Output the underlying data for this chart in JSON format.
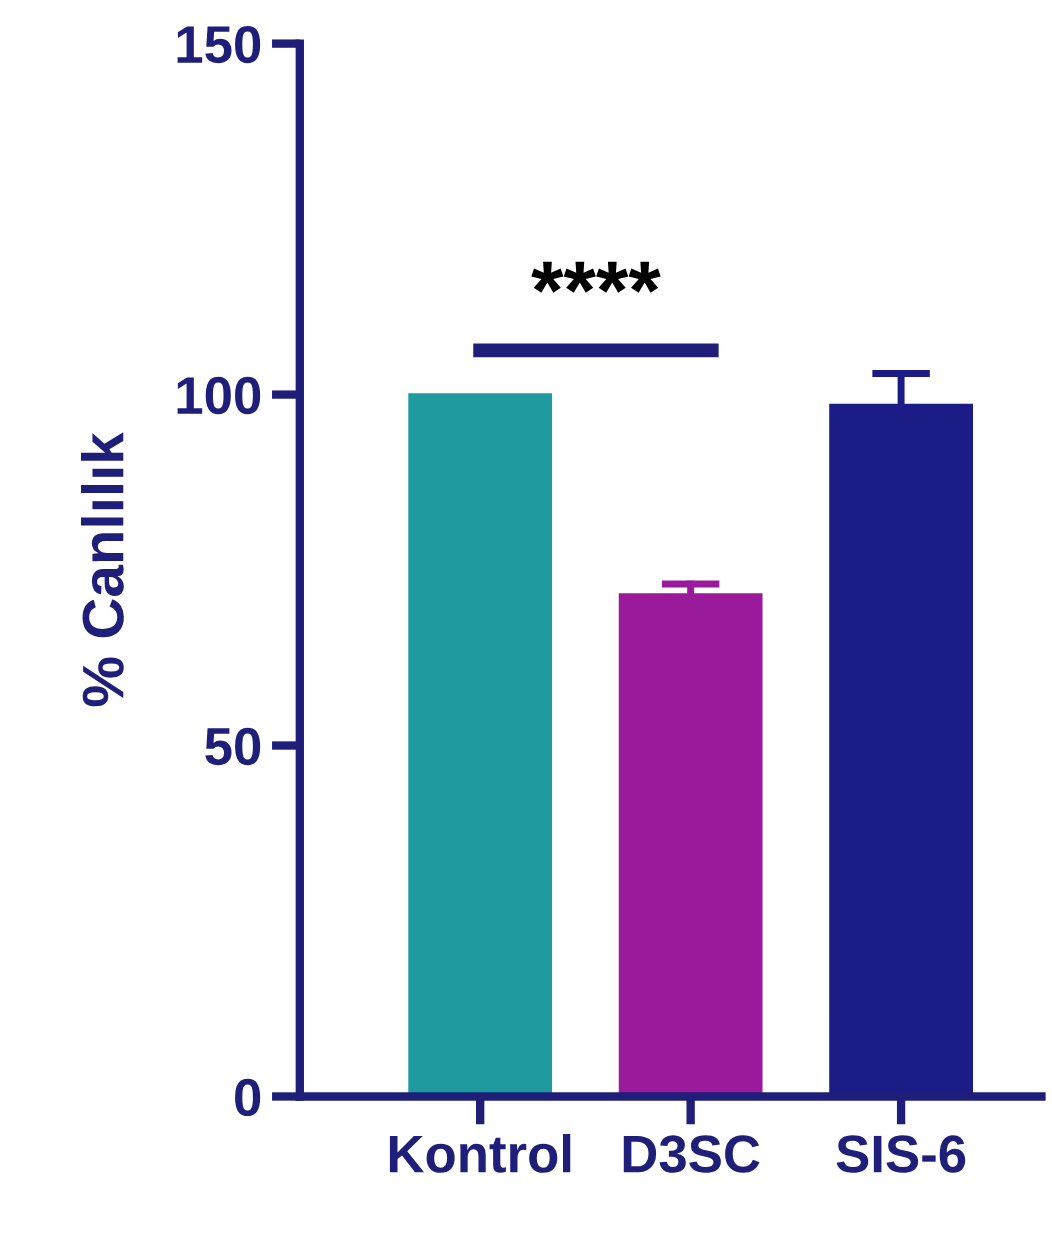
{
  "chart_data": {
    "type": "bar",
    "ylabel": "% Canlılık",
    "categories": [
      "Kontrol",
      "D3SC",
      "SIS-6"
    ],
    "values": [
      100,
      71.5,
      98.5
    ],
    "errors": [
      null,
      [
        71.5,
        73
      ],
      [
        98.5,
        103
      ]
    ],
    "colors": [
      "#1f9a9e",
      "#9a1a9c",
      "#1c1c86"
    ],
    "ylim": [
      0,
      150
    ],
    "yticks": [
      0,
      50,
      100,
      150
    ],
    "annotations": [
      "****"
    ],
    "grid": false,
    "legend": false
  }
}
